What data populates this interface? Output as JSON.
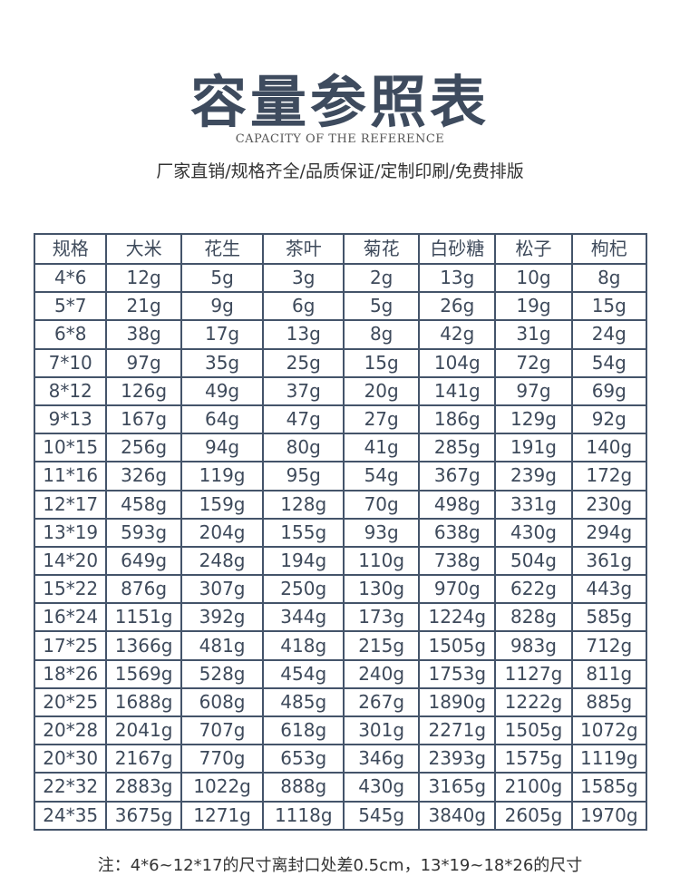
{
  "title": "容量参照表",
  "subtitle": "CAPACITY OF THE REFERENCE",
  "tagline": "厂家直销/规格齐全/品质保证/定制印刷/免费排版",
  "table": {
    "headers": [
      "规格",
      "大米",
      "花生",
      "茶叶",
      "菊花",
      "白砂糖",
      "松子",
      "枸杞"
    ],
    "rows": [
      [
        "4*6",
        "12g",
        "5g",
        "3g",
        "2g",
        "13g",
        "10g",
        "8g"
      ],
      [
        "5*7",
        "21g",
        "9g",
        "6g",
        "5g",
        "26g",
        "19g",
        "15g"
      ],
      [
        "6*8",
        "38g",
        "17g",
        "13g",
        "8g",
        "42g",
        "31g",
        "24g"
      ],
      [
        "7*10",
        "97g",
        "35g",
        "25g",
        "15g",
        "104g",
        "72g",
        "54g"
      ],
      [
        "8*12",
        "126g",
        "49g",
        "37g",
        "20g",
        "141g",
        "97g",
        "69g"
      ],
      [
        "9*13",
        "167g",
        "64g",
        "47g",
        "27g",
        "186g",
        "129g",
        "92g"
      ],
      [
        "10*15",
        "256g",
        "94g",
        "80g",
        "41g",
        "285g",
        "191g",
        "140g"
      ],
      [
        "11*16",
        "326g",
        "119g",
        "95g",
        "54g",
        "367g",
        "239g",
        "172g"
      ],
      [
        "12*17",
        "458g",
        "159g",
        "128g",
        "70g",
        "498g",
        "331g",
        "230g"
      ],
      [
        "13*19",
        "593g",
        "204g",
        "155g",
        "93g",
        "638g",
        "430g",
        "294g"
      ],
      [
        "14*20",
        "649g",
        "248g",
        "194g",
        "110g",
        "738g",
        "504g",
        "361g"
      ],
      [
        "15*22",
        "876g",
        "307g",
        "250g",
        "130g",
        "970g",
        "622g",
        "443g"
      ],
      [
        "16*24",
        "1151g",
        "392g",
        "344g",
        "173g",
        "1224g",
        "828g",
        "585g"
      ],
      [
        "17*25",
        "1366g",
        "481g",
        "418g",
        "215g",
        "1505g",
        "983g",
        "712g"
      ],
      [
        "18*26",
        "1569g",
        "528g",
        "454g",
        "240g",
        "1753g",
        "1127g",
        "811g"
      ],
      [
        "20*25",
        "1688g",
        "608g",
        "485g",
        "267g",
        "1890g",
        "1222g",
        "885g"
      ],
      [
        "20*28",
        "2041g",
        "707g",
        "618g",
        "301g",
        "2271g",
        "1505g",
        "1072g"
      ],
      [
        "20*30",
        "2167g",
        "770g",
        "653g",
        "346g",
        "2393g",
        "1575g",
        "1119g"
      ],
      [
        "22*32",
        "2883g",
        "1022g",
        "888g",
        "430g",
        "3165g",
        "2100g",
        "1585g"
      ],
      [
        "24*35",
        "3675g",
        "1271g",
        "1118g",
        "545g",
        "3840g",
        "2605g",
        "1970g"
      ]
    ]
  },
  "note": "注：4*6~12*17的尺寸离封口处差0.5cm，13*19~18*26的尺寸"
}
